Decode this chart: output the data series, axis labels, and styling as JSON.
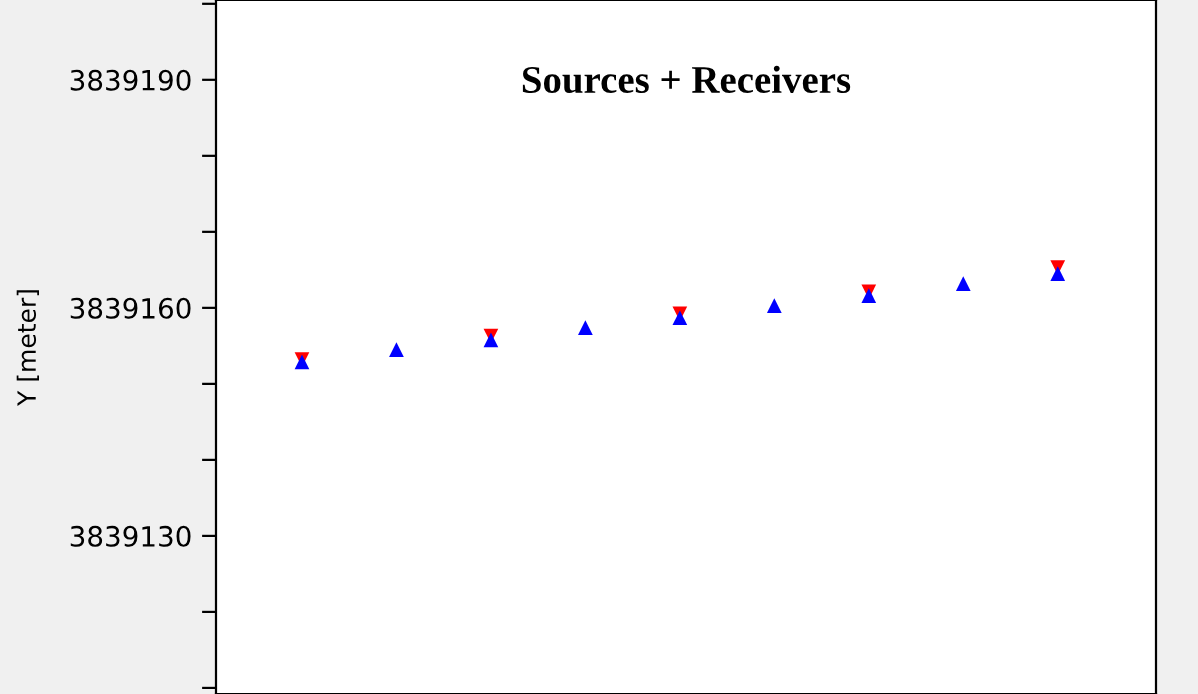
{
  "chart_data": {
    "type": "scatter",
    "title": "Sources + Receivers",
    "ylabel": "Y [meter]",
    "categories": [
      null,
      null,
      null,
      null,
      null,
      null,
      null,
      null,
      null
    ],
    "series": [
      {
        "color": "#ff0000",
        "marker": "triangle_down",
        "values": [
          3839153.2,
          null,
          3839156.3,
          null,
          3839159.2,
          null,
          3839162.1,
          null,
          3839165.3
        ]
      },
      {
        "color": "#0000ff",
        "marker": "triangle",
        "values": [
          3839152.9,
          3839154.5,
          3839155.8,
          3839157.4,
          3839158.7,
          3839160.3,
          3839161.6,
          3839163.2,
          3839164.5
        ]
      }
    ],
    "ylim": [
      3839109.2,
      3839200.5
    ],
    "yticks": [
      {
        "value": 3839110,
        "label": null
      },
      {
        "value": 3839120,
        "label": null
      },
      3839130,
      {
        "value": 3839140,
        "label": null
      },
      {
        "value": 3839150,
        "label": null
      },
      3839160,
      {
        "value": 3839170,
        "label": null
      },
      {
        "value": 3839180,
        "label": null
      },
      3839190,
      {
        "value": 3839200,
        "label": null
      }
    ],
    "tick_labels": "y",
    "grid": false,
    "legend": false
  }
}
